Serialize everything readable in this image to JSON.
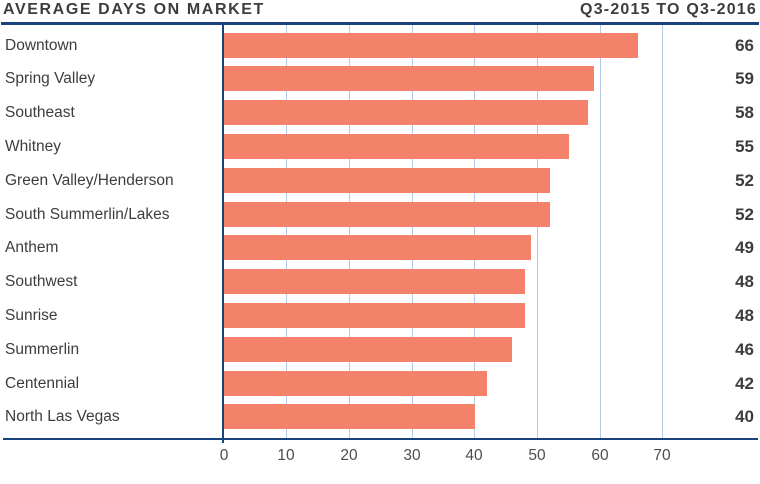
{
  "header": {
    "title": "AVERAGE DAYS ON MARKET",
    "period": "Q3-2015 TO Q3-2016"
  },
  "chart_data": {
    "type": "bar",
    "orientation": "horizontal",
    "title": "AVERAGE DAYS ON MARKET",
    "subtitle": "Q3-2015 TO Q3-2016",
    "categories": [
      "Downtown",
      "Spring Valley",
      "Southeast",
      "Whitney",
      "Green Valley/Henderson",
      "South Summerlin/Lakes",
      "Anthem",
      "Southwest",
      "Sunrise",
      "Summerlin",
      "Centennial",
      "North Las Vegas"
    ],
    "values": [
      66,
      59,
      58,
      55,
      52,
      52,
      49,
      48,
      48,
      46,
      42,
      40
    ],
    "value_labels_shown": true,
    "xticks": [
      0,
      10,
      20,
      30,
      40,
      50,
      60,
      70
    ],
    "xlim": [
      0,
      85
    ],
    "grid": true,
    "legend": "none",
    "colors": {
      "bar": "#F4826A",
      "axis": "#1A437E",
      "gridline": "#B5CAE4",
      "text": "#3D3D3D",
      "tick_text": "#4E4E4E"
    }
  }
}
